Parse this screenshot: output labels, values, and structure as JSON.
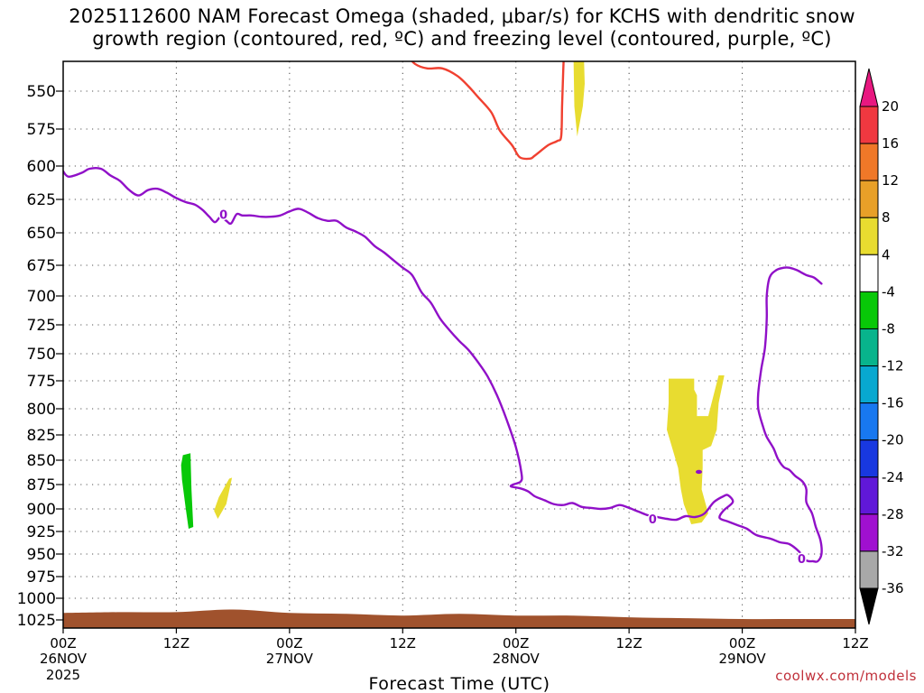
{
  "title_line1": "2025112600 NAM Forecast Omega (shaded, μbar/s) for KCHS with dendritic snow",
  "title_line2": "growth region (contoured, red, ºC) and freezing level (contoured, purple, ºC)",
  "credit": "coolwx.com/models",
  "chart_data": {
    "type": "contour",
    "xlabel": "Forecast Time (UTC)",
    "year_label": "2025",
    "x_unit": "forecast hour",
    "xlim": [
      0,
      84
    ],
    "x_ticks": [
      {
        "hour": 0,
        "line1": "00Z",
        "line2": "26NOV"
      },
      {
        "hour": 12,
        "line1": "12Z",
        "line2": ""
      },
      {
        "hour": 24,
        "line1": "00Z",
        "line2": "27NOV"
      },
      {
        "hour": 36,
        "line1": "12Z",
        "line2": ""
      },
      {
        "hour": 48,
        "line1": "00Z",
        "line2": "28NOV"
      },
      {
        "hour": 60,
        "line1": "12Z",
        "line2": ""
      },
      {
        "hour": 72,
        "line1": "00Z",
        "line2": "29NOV"
      },
      {
        "hour": 84,
        "line1": "12Z",
        "line2": ""
      }
    ],
    "ylabel": "",
    "y_unit": "mb",
    "ylim": [
      525,
      1035
    ],
    "y_ticks": [
      550,
      575,
      600,
      625,
      650,
      675,
      700,
      725,
      750,
      775,
      800,
      825,
      850,
      875,
      900,
      925,
      950,
      975,
      1000,
      1025
    ],
    "grid": true,
    "colorbar": {
      "orientation": "vertical",
      "placement": "right",
      "labels": [
        "20",
        "16",
        "12",
        "8",
        "4",
        "-4",
        "-8",
        "-12",
        "-16",
        "-20",
        "-24",
        "-28",
        "-32",
        "-36"
      ],
      "segments": [
        {
          "range": "16 to 20",
          "color": "#f03840"
        },
        {
          "range": "12 to 16",
          "color": "#f07828"
        },
        {
          "range": "8 to 12",
          "color": "#e8a028"
        },
        {
          "range": "4 to 8",
          "color": "#e8dc30"
        },
        {
          "range": "-4 to 4",
          "color": "#ffffff"
        },
        {
          "range": "-8 to -4",
          "color": "#08c808"
        },
        {
          "range": "-12 to -8",
          "color": "#08b48c"
        },
        {
          "range": "-16 to -12",
          "color": "#08a8d0"
        },
        {
          "range": "-20 to -16",
          "color": "#1878f0"
        },
        {
          "range": "-24 to -20",
          "color": "#1838e0"
        },
        {
          "range": "-28 to -24",
          "color": "#6018d8"
        },
        {
          "range": "-32 to -28",
          "color": "#a010d0"
        },
        {
          "range": "-36 to -32",
          "color": "#a8a8a8"
        }
      ],
      "top_arrow_color": "#e81880",
      "bottom_arrow_color": "#000000"
    },
    "colors": {
      "dgz_contour": "#f04030",
      "freezing_contour": "#9010c8",
      "omega_4_to_8": "#e8dc30",
      "omega_neg4_to_neg8": "#08c808",
      "ground": "#a0522d"
    },
    "freezing_level_label": "0",
    "shaded_regions": [
      {
        "level": "-4 to -8",
        "color": "#08c808",
        "points": [
          [
            12.7,
            845
          ],
          [
            13.5,
            843
          ],
          [
            13.6,
            880
          ],
          [
            13.8,
            920
          ],
          [
            13.3,
            922
          ],
          [
            13.0,
            900
          ],
          [
            12.6,
            870
          ],
          [
            12.5,
            855
          ]
        ]
      },
      {
        "level": "4 to 8",
        "color": "#e8dc30",
        "points": [
          [
            17.6,
            869
          ],
          [
            17.9,
            868
          ],
          [
            17.3,
            895
          ],
          [
            16.4,
            911
          ],
          [
            16.0,
            902
          ],
          [
            16.5,
            888
          ]
        ]
      },
      {
        "level": "4 to 8",
        "color": "#e8dc30",
        "points": [
          [
            54.1,
            525
          ],
          [
            55.2,
            525
          ],
          [
            55.3,
            545
          ],
          [
            55.1,
            560
          ],
          [
            54.5,
            580
          ],
          [
            54.2,
            560
          ]
        ]
      },
      {
        "level": "4 to 8",
        "color": "#e8dc30",
        "points": [
          [
            64.2,
            773
          ],
          [
            66.9,
            773
          ],
          [
            66.9,
            783
          ],
          [
            67.2,
            788
          ],
          [
            67.2,
            807
          ],
          [
            68.4,
            807
          ],
          [
            69.5,
            770
          ],
          [
            70.1,
            770
          ],
          [
            69.5,
            795
          ],
          [
            69.3,
            820
          ],
          [
            68.7,
            836
          ],
          [
            67.8,
            840
          ],
          [
            67.8,
            858
          ],
          [
            67.7,
            880
          ],
          [
            68.4,
            905
          ],
          [
            67.7,
            915
          ],
          [
            66.6,
            917
          ],
          [
            65.8,
            895
          ],
          [
            65.5,
            880
          ],
          [
            65.2,
            858
          ],
          [
            64.8,
            845
          ],
          [
            64.0,
            820
          ],
          [
            64.2,
            795
          ]
        ]
      }
    ],
    "contours": [
      {
        "kind": "dendritic snow growth region",
        "color": "#f04030",
        "points": [
          [
            36.3,
            525
          ],
          [
            37.3,
            532
          ],
          [
            38.6,
            535
          ],
          [
            40.2,
            535
          ],
          [
            41.8,
            540
          ],
          [
            43.0,
            547
          ],
          [
            44.0,
            554
          ],
          [
            45.4,
            564
          ],
          [
            46.3,
            576
          ],
          [
            47.6,
            586
          ],
          [
            48.4,
            594
          ],
          [
            49.5,
            595
          ],
          [
            50.0,
            593
          ],
          [
            51.4,
            586
          ],
          [
            52.4,
            583
          ],
          [
            52.8,
            580
          ],
          [
            52.9,
            560
          ],
          [
            53.0,
            540
          ],
          [
            53.1,
            525
          ]
        ]
      },
      {
        "kind": "freezing level",
        "color": "#9010c8",
        "points": [
          [
            0,
            604
          ],
          [
            0.6,
            608
          ],
          [
            2.0,
            605
          ],
          [
            2.8,
            602
          ],
          [
            4.0,
            602
          ],
          [
            5.0,
            607
          ],
          [
            6.0,
            611
          ],
          [
            7.0,
            618
          ],
          [
            8.0,
            622
          ],
          [
            9.0,
            618
          ],
          [
            10.0,
            617
          ],
          [
            11.0,
            620
          ],
          [
            12.0,
            624
          ],
          [
            13.0,
            627
          ],
          [
            14.0,
            629
          ],
          [
            14.8,
            633
          ],
          [
            15.5,
            638
          ],
          [
            16.1,
            642
          ],
          [
            16.7,
            638
          ],
          [
            17.3,
            641
          ],
          [
            17.8,
            643
          ],
          [
            18.4,
            636
          ],
          [
            19.0,
            637
          ],
          [
            20.0,
            637
          ],
          [
            21.0,
            638
          ],
          [
            22.0,
            638
          ],
          [
            23.0,
            637
          ],
          [
            24.0,
            634
          ],
          [
            25.0,
            632
          ],
          [
            26.0,
            635
          ],
          [
            27.0,
            639
          ],
          [
            28.0,
            641
          ],
          [
            29.0,
            641
          ],
          [
            30.0,
            646
          ],
          [
            31.0,
            649
          ],
          [
            32.0,
            653
          ],
          [
            33.0,
            660
          ],
          [
            34.0,
            665
          ],
          [
            35.0,
            671
          ],
          [
            36.0,
            677
          ],
          [
            37.0,
            683
          ],
          [
            38.0,
            697
          ],
          [
            39.0,
            706
          ],
          [
            40.0,
            720
          ],
          [
            41.0,
            730
          ],
          [
            42.0,
            739
          ],
          [
            43.0,
            747
          ],
          [
            44.0,
            758
          ],
          [
            45.0,
            771
          ],
          [
            46.0,
            788
          ],
          [
            47.0,
            810
          ],
          [
            48.0,
            837
          ],
          [
            48.6,
            864
          ],
          [
            48.5,
            872
          ],
          [
            47.7,
            875
          ],
          [
            47.5,
            877
          ],
          [
            48.5,
            879
          ],
          [
            49.3,
            882
          ],
          [
            50.0,
            887
          ],
          [
            51.0,
            891
          ],
          [
            52.0,
            895
          ],
          [
            53.0,
            896
          ],
          [
            54.0,
            894
          ],
          [
            55.0,
            898
          ],
          [
            56.0,
            899
          ],
          [
            57.0,
            900
          ],
          [
            58.0,
            899
          ],
          [
            59.0,
            896
          ],
          [
            60.0,
            899
          ],
          [
            61.0,
            903
          ],
          [
            62.0,
            907
          ],
          [
            63.0,
            909
          ],
          [
            64.0,
            911
          ],
          [
            65.0,
            912
          ],
          [
            66.0,
            908
          ],
          [
            67.0,
            909
          ],
          [
            68.0,
            905
          ],
          [
            69.0,
            893
          ],
          [
            70.0,
            887
          ],
          [
            70.5,
            886
          ],
          [
            71.0,
            893
          ],
          [
            70.0,
            902
          ],
          [
            69.6,
            910
          ],
          [
            70.5,
            914
          ],
          [
            71.5,
            918
          ],
          [
            72.5,
            922
          ],
          [
            73.5,
            929
          ],
          [
            75.0,
            933
          ],
          [
            76.0,
            937
          ],
          [
            77.0,
            939
          ],
          [
            78.0,
            947
          ],
          [
            78.8,
            957
          ],
          [
            79.5,
            958
          ],
          [
            80.0,
            958
          ],
          [
            80.4,
            950
          ],
          [
            80.3,
            935
          ],
          [
            79.8,
            920
          ],
          [
            79.4,
            905
          ],
          [
            78.8,
            893
          ],
          [
            78.8,
            880
          ],
          [
            78.4,
            872
          ],
          [
            77.6,
            866
          ],
          [
            77.0,
            860
          ],
          [
            76.4,
            857
          ],
          [
            75.8,
            849
          ],
          [
            75.3,
            838
          ],
          [
            74.6,
            827
          ],
          [
            74.2,
            817
          ],
          [
            73.7,
            800
          ],
          [
            73.7,
            786
          ],
          [
            74.0,
            765
          ],
          [
            74.4,
            745
          ],
          [
            74.6,
            720
          ],
          [
            74.6,
            700
          ],
          [
            74.9,
            685
          ],
          [
            75.6,
            679
          ],
          [
            76.4,
            677
          ],
          [
            77.0,
            677
          ],
          [
            77.8,
            679
          ],
          [
            78.8,
            683
          ],
          [
            79.6,
            685
          ],
          [
            80.4,
            690
          ]
        ]
      }
    ],
    "contour_labels": [
      {
        "text": "0",
        "hour": 17.0,
        "mb": 636
      },
      {
        "text": "0",
        "hour": 62.5,
        "mb": 911
      },
      {
        "text": "0",
        "hour": 78.3,
        "mb": 955
      }
    ],
    "small_features": [
      {
        "kind": "freezing level closed contour",
        "hour": 67.4,
        "mb": 862
      }
    ],
    "ground_surface_mb": [
      [
        0,
        1017
      ],
      [
        6,
        1016
      ],
      [
        12,
        1016
      ],
      [
        18,
        1013
      ],
      [
        24,
        1017
      ],
      [
        30,
        1018
      ],
      [
        36,
        1020
      ],
      [
        42,
        1018
      ],
      [
        48,
        1020
      ],
      [
        54,
        1020
      ],
      [
        60,
        1022
      ],
      [
        66,
        1023
      ],
      [
        72,
        1024
      ],
      [
        78,
        1024
      ],
      [
        84,
        1024
      ]
    ]
  }
}
